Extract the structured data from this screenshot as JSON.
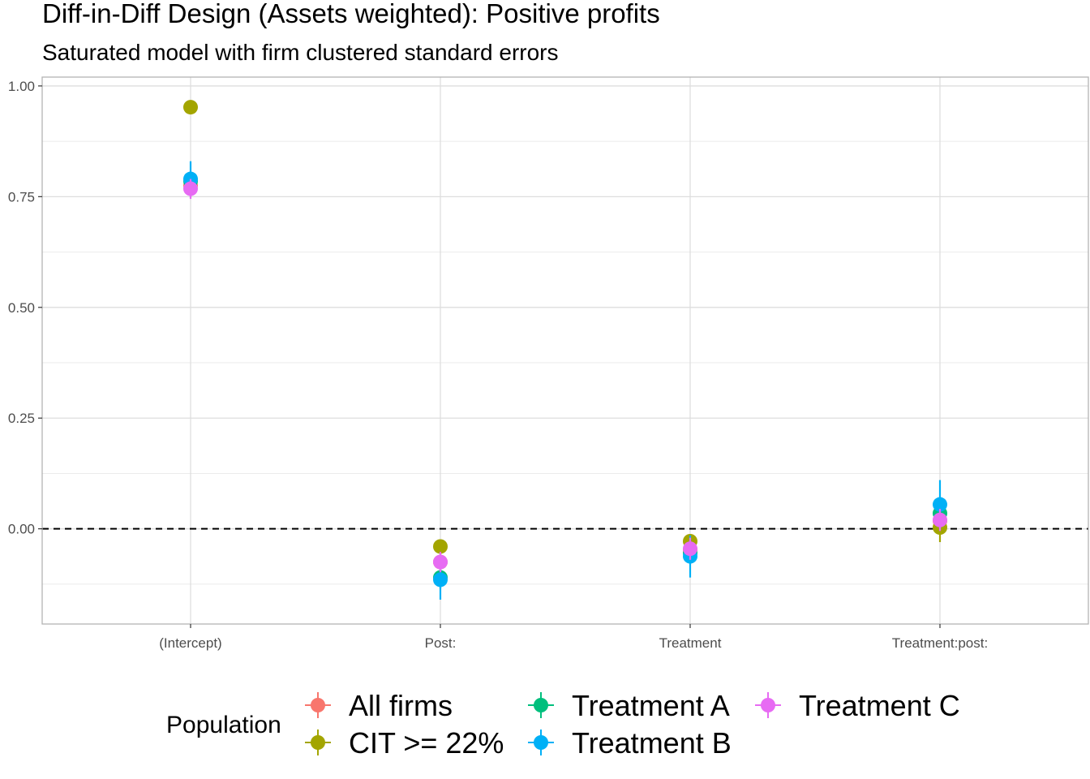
{
  "chart_data": {
    "type": "scatter",
    "title": "Diff-in-Diff Design (Assets weighted): Positive profits",
    "subtitle": "Saturated model with firm clustered standard errors",
    "xlabel": "",
    "ylabel": "",
    "categories": [
      "(Intercept)",
      "Post:",
      "Treatment",
      "Treatment:post:"
    ],
    "ylim": [
      -0.215,
      1.02
    ],
    "yticks": [
      0.0,
      0.25,
      0.5,
      0.75,
      1.0
    ],
    "ytick_labels": [
      "0.00",
      "0.25",
      "0.50",
      "0.75",
      "1.00"
    ],
    "reference_line": 0,
    "grid": true,
    "legend": {
      "title": "Population",
      "position": "bottom"
    },
    "series": [
      {
        "name": "All firms",
        "color": "#F8766D",
        "values": [
          0.775,
          -0.075,
          -0.048,
          0.018
        ],
        "ci_low": [
          0.755,
          -0.095,
          -0.07,
          -0.005
        ],
        "ci_high": [
          0.795,
          -0.055,
          -0.026,
          0.041
        ]
      },
      {
        "name": "CIT >= 22%",
        "color": "#A3A500",
        "values": [
          0.952,
          -0.04,
          -0.028,
          0.003
        ],
        "ci_low": [
          0.945,
          -0.05,
          -0.04,
          -0.03
        ],
        "ci_high": [
          0.96,
          -0.03,
          -0.015,
          0.035
        ]
      },
      {
        "name": "Treatment A",
        "color": "#00BF7D",
        "values": [
          0.785,
          -0.11,
          -0.055,
          0.035
        ],
        "ci_low": [
          0.765,
          -0.135,
          -0.08,
          0.01
        ],
        "ci_high": [
          0.805,
          -0.085,
          -0.03,
          0.06
        ]
      },
      {
        "name": "Treatment B",
        "color": "#00B0F6",
        "values": [
          0.79,
          -0.115,
          -0.062,
          0.055
        ],
        "ci_low": [
          0.75,
          -0.16,
          -0.11,
          0.0
        ],
        "ci_high": [
          0.83,
          -0.07,
          -0.015,
          0.11
        ]
      },
      {
        "name": "Treatment C",
        "color": "#E76BF3",
        "values": [
          0.768,
          -0.075,
          -0.045,
          0.02
        ],
        "ci_low": [
          0.745,
          -0.098,
          -0.07,
          -0.005
        ],
        "ci_high": [
          0.79,
          -0.052,
          -0.02,
          0.045
        ]
      }
    ]
  }
}
